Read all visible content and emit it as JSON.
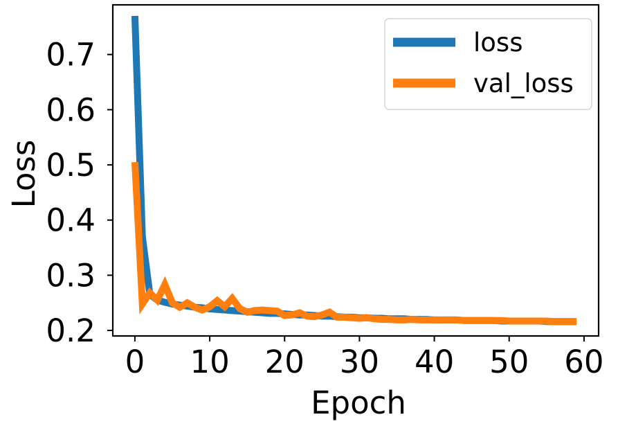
{
  "chart_data": {
    "type": "line",
    "xlabel": "Epoch",
    "ylabel": "Loss",
    "xlim": [
      -2.95,
      61.95
    ],
    "ylim": [
      0.19,
      0.79
    ],
    "xticks": [
      0,
      10,
      20,
      30,
      40,
      50,
      60
    ],
    "yticks": [
      0.2,
      0.3,
      0.4,
      0.5,
      0.6,
      0.7
    ],
    "xtick_labels": [
      "0",
      "10",
      "20",
      "30",
      "40",
      "50",
      "60"
    ],
    "ytick_labels": [
      "0.2",
      "0.3",
      "0.4",
      "0.5",
      "0.6",
      "0.7"
    ],
    "grid": false,
    "legend": "top-right",
    "x": [
      0,
      1,
      2,
      3,
      4,
      5,
      6,
      7,
      8,
      9,
      10,
      11,
      12,
      13,
      14,
      15,
      16,
      17,
      18,
      19,
      20,
      21,
      22,
      23,
      24,
      25,
      26,
      27,
      28,
      29,
      30,
      31,
      32,
      33,
      34,
      35,
      36,
      37,
      38,
      39,
      40,
      41,
      42,
      43,
      44,
      45,
      46,
      47,
      48,
      49,
      50,
      51,
      52,
      53,
      54,
      55,
      56,
      57,
      58,
      59
    ],
    "series": [
      {
        "name": "loss",
        "color": "#1f77b4",
        "values": [
          0.77,
          0.37,
          0.265,
          0.255,
          0.251,
          0.248,
          0.246,
          0.244,
          0.242,
          0.241,
          0.239,
          0.238,
          0.237,
          0.236,
          0.235,
          0.234,
          0.233,
          0.232,
          0.231,
          0.231,
          0.23,
          0.229,
          0.228,
          0.228,
          0.227,
          0.226,
          0.226,
          0.225,
          0.224,
          0.224,
          0.223,
          0.223,
          0.222,
          0.222,
          0.221,
          0.221,
          0.221,
          0.22,
          0.22,
          0.22,
          0.219,
          0.219,
          0.219,
          0.219,
          0.218,
          0.218,
          0.218,
          0.218,
          0.218,
          0.217,
          0.217,
          0.217,
          0.217,
          0.217,
          0.217,
          0.216,
          0.216,
          0.216,
          0.216,
          0.216
        ]
      },
      {
        "name": "val_loss",
        "color": "#ff7f0e",
        "values": [
          0.505,
          0.248,
          0.268,
          0.255,
          0.283,
          0.25,
          0.242,
          0.25,
          0.242,
          0.237,
          0.243,
          0.254,
          0.243,
          0.258,
          0.24,
          0.233,
          0.236,
          0.237,
          0.236,
          0.235,
          0.227,
          0.228,
          0.232,
          0.226,
          0.225,
          0.228,
          0.233,
          0.224,
          0.224,
          0.223,
          0.222,
          0.223,
          0.221,
          0.22,
          0.22,
          0.219,
          0.219,
          0.22,
          0.219,
          0.219,
          0.219,
          0.219,
          0.219,
          0.219,
          0.218,
          0.218,
          0.218,
          0.218,
          0.218,
          0.218,
          0.217,
          0.217,
          0.217,
          0.217,
          0.217,
          0.217,
          0.216,
          0.216,
          0.216,
          0.216
        ]
      }
    ]
  }
}
